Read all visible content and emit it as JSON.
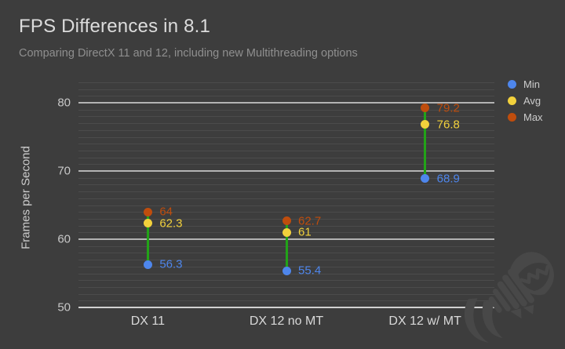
{
  "header": {
    "title": "FPS Differences in 8.1",
    "subtitle": "Comparing DirectX 11 and 12, including new Multithreading options"
  },
  "chart_data": {
    "type": "scatter",
    "title": "FPS Differences in 8.1",
    "subtitle": "Comparing DirectX 11 and 12, including new Multithreading options",
    "ylabel": "Frames per Second",
    "xlabel": "",
    "ylim": [
      50,
      83
    ],
    "yticks": [
      50,
      60,
      70,
      80
    ],
    "minor_grid_step": 1,
    "grid": "on",
    "categories": [
      "DX 11",
      "DX 12 no MT",
      "DX 12 w/ MT"
    ],
    "series": [
      {
        "name": "Min",
        "color": "#4e86ec",
        "values": [
          56.3,
          55.4,
          68.9
        ]
      },
      {
        "name": "Avg",
        "color": "#f2d13c",
        "values": [
          62.3,
          61,
          76.8
        ]
      },
      {
        "name": "Max",
        "color": "#bf4d0d",
        "values": [
          64,
          62.7,
          79.2
        ]
      }
    ],
    "range_connector_color": "#22a318",
    "point_labels_shown": true,
    "legend_position": "top-right"
  },
  "colors": {
    "background": "#3d3d3d",
    "title_text": "#dcdcdc",
    "subtitle_text": "#8f8f8f",
    "tick_text": "#c8c8c8",
    "major_gridline": "#e1e1e1",
    "minor_gridline": "#4a4a4a",
    "watermark": "#484848"
  },
  "watermark": {
    "icon": "fish-skeleton-logo-icon"
  }
}
